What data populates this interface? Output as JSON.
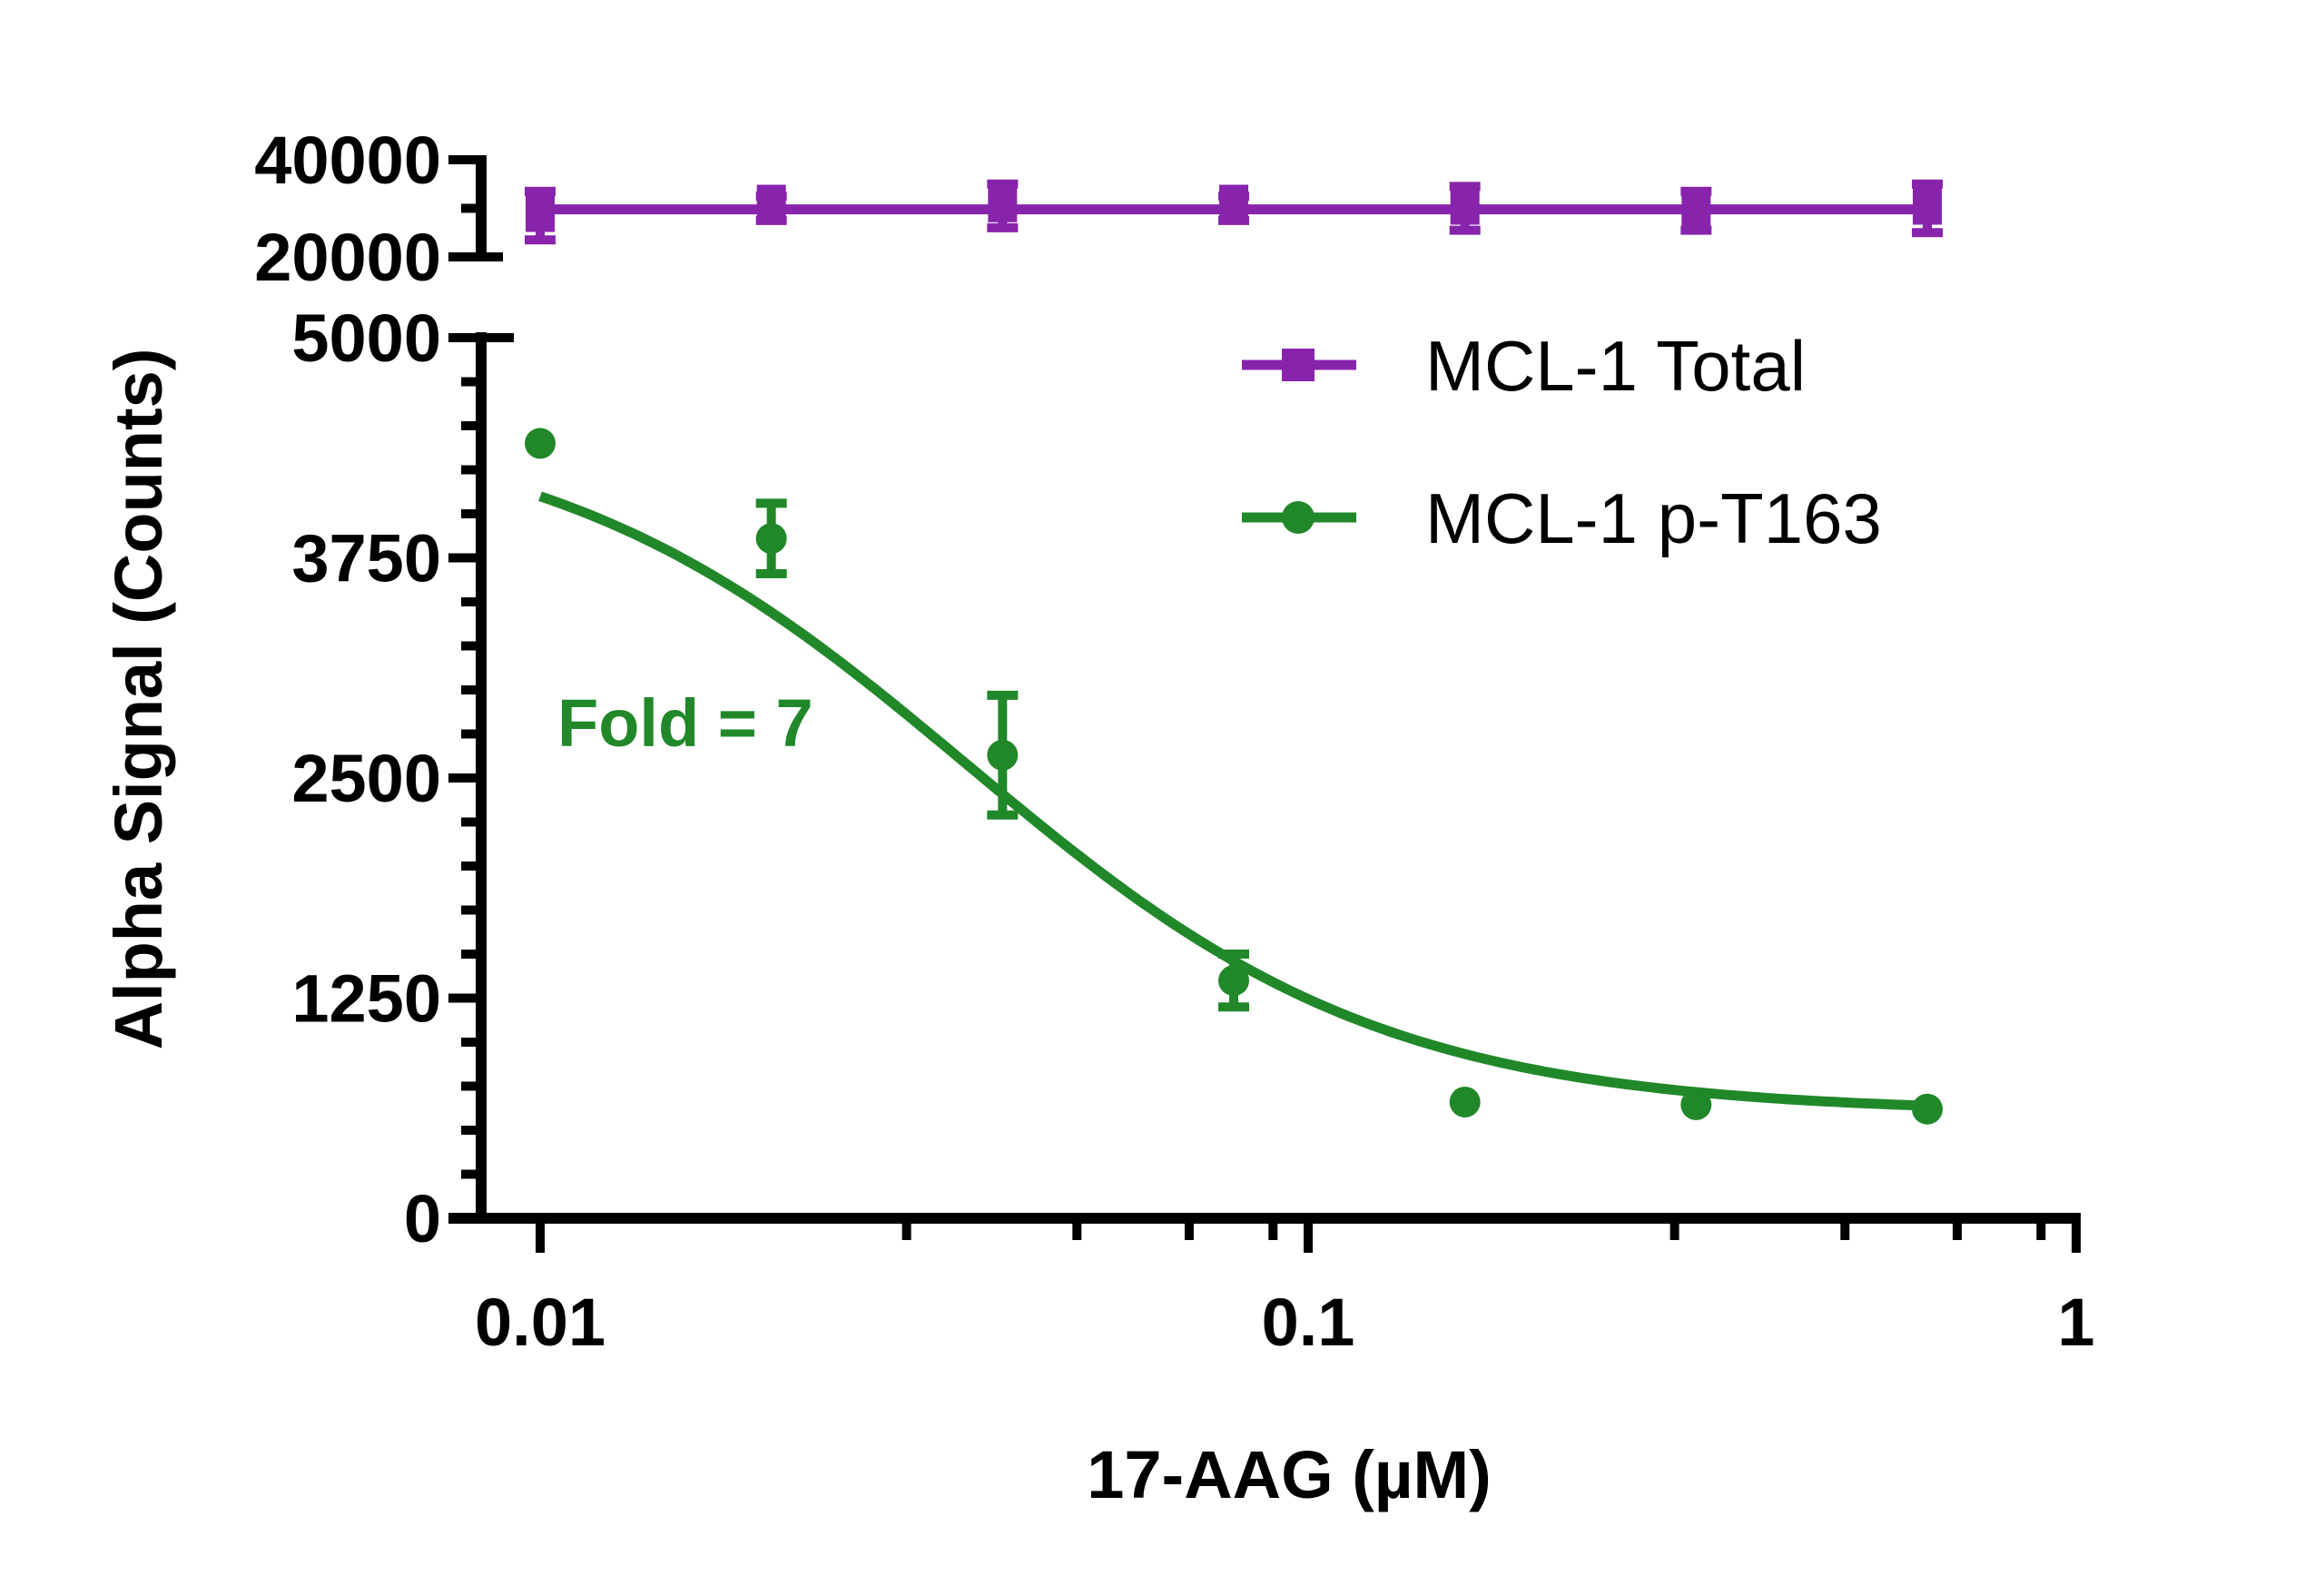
{
  "chart_data": {
    "type": "line",
    "title": "",
    "xlabel": "17-AAG (µM)",
    "ylabel": "Alpha Signal (Counts)",
    "x_scale": "log",
    "xlim": [
      0.0085,
      1
    ],
    "x_ticks": [
      0.01,
      0.1,
      1
    ],
    "x_tick_labels": [
      "0.01",
      "0.1",
      "1"
    ],
    "x_minor_ticks": [
      0.03,
      0.05,
      0.07,
      0.09,
      0.3,
      0.5,
      0.7,
      0.9
    ],
    "y_axis_break": true,
    "lower_panel": {
      "ylim": [
        0,
        5000
      ],
      "y_ticks": [
        0,
        1250,
        2500,
        3750,
        5000
      ],
      "y_tick_labels": [
        "0",
        "1250",
        "2500",
        "3750",
        "5000"
      ],
      "y_minor_step": 250
    },
    "upper_panel": {
      "ylim": [
        20000,
        40000
      ],
      "y_ticks": [
        20000,
        30000,
        40000
      ],
      "y_tick_labels": [
        "20000",
        "",
        "40000"
      ]
    },
    "grid": false,
    "legend": {
      "position": "top-right"
    },
    "series": [
      {
        "name": "MCL-1 Total",
        "color": "#8824ac",
        "marker": "square",
        "panel": "upper",
        "connect": "straight",
        "x": [
          0.01,
          0.02,
          0.04,
          0.08,
          0.16,
          0.32,
          0.64
        ],
        "values": [
          28500,
          30000,
          30500,
          30000,
          30000,
          29500,
          30000
        ],
        "errors": [
          5000,
          2500,
          4500,
          2500,
          4500,
          4000,
          5000
        ]
      },
      {
        "name": "MCL-1 p-T163",
        "color": "#21882a",
        "marker": "circle",
        "panel": "lower",
        "connect": "sigmoid-fit",
        "x": [
          0.01,
          0.02,
          0.04,
          0.08,
          0.16,
          0.32,
          0.64
        ],
        "values": [
          4400,
          3860,
          2630,
          1350,
          660,
          645,
          620
        ],
        "errors": [
          0,
          200,
          340,
          150,
          0,
          0,
          0
        ],
        "fit": {
          "top": 4550,
          "bottom": 600,
          "ic50": 0.036,
          "hill": 1.6
        }
      }
    ],
    "annotations": [
      {
        "text": "Fold = 7",
        "color": "#21882a"
      }
    ]
  }
}
